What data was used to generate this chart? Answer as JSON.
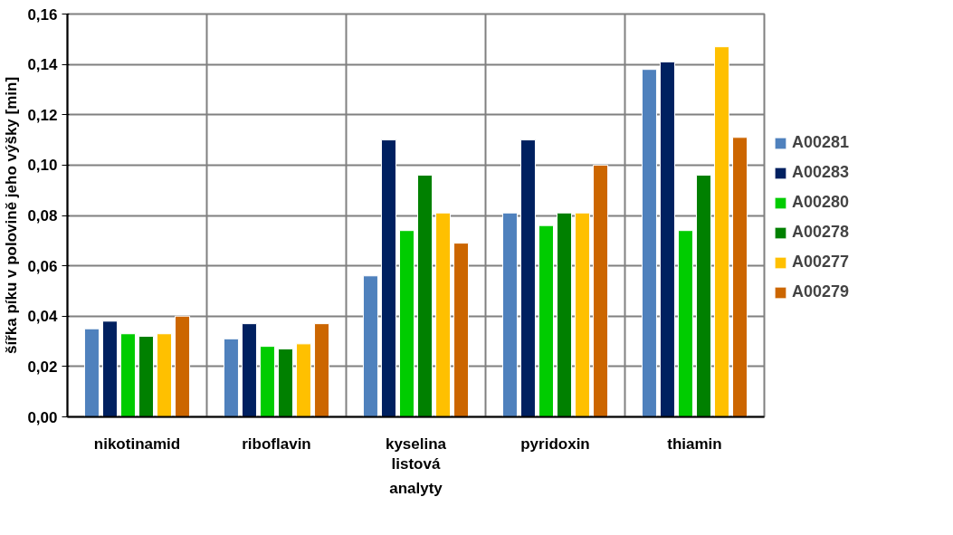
{
  "chart_data": {
    "type": "bar",
    "xlabel": "analyty",
    "ylabel": "šířka píku v polovině jeho výšky [min]",
    "categories": [
      "nikotinamid",
      "riboflavin",
      "kyselina\nlistová",
      "pyridoxin",
      "thiamin"
    ],
    "series": [
      {
        "name": "A00281",
        "color": "#4f81bd",
        "values": [
          0.035,
          0.031,
          0.056,
          0.081,
          0.138
        ]
      },
      {
        "name": "A00283",
        "color": "#002060",
        "values": [
          0.038,
          0.037,
          0.11,
          0.11,
          0.141
        ]
      },
      {
        "name": "A00280",
        "color": "#00cc00",
        "values": [
          0.033,
          0.028,
          0.074,
          0.076,
          0.074
        ]
      },
      {
        "name": "A00278",
        "color": "#008000",
        "values": [
          0.032,
          0.027,
          0.096,
          0.081,
          0.096
        ]
      },
      {
        "name": "A00277",
        "color": "#ffc000",
        "values": [
          0.033,
          0.029,
          0.081,
          0.081,
          0.147
        ]
      },
      {
        "name": "A00279",
        "color": "#cc6600",
        "values": [
          0.04,
          0.037,
          0.069,
          0.1,
          0.111
        ]
      }
    ],
    "ylim": [
      0,
      0.16
    ],
    "yticks": [
      {
        "value": 0,
        "label": "0,00"
      },
      {
        "value": 0.02,
        "label": "0,02"
      },
      {
        "value": 0.04,
        "label": "0,04"
      },
      {
        "value": 0.06,
        "label": "0,06"
      },
      {
        "value": 0.08,
        "label": "0,08"
      },
      {
        "value": 0.1,
        "label": "0,10"
      },
      {
        "value": 0.12,
        "label": "0,12"
      },
      {
        "value": 0.14,
        "label": "0,14"
      },
      {
        "value": 0.16,
        "label": "0,16"
      }
    ],
    "grid": true,
    "legend": "right"
  }
}
